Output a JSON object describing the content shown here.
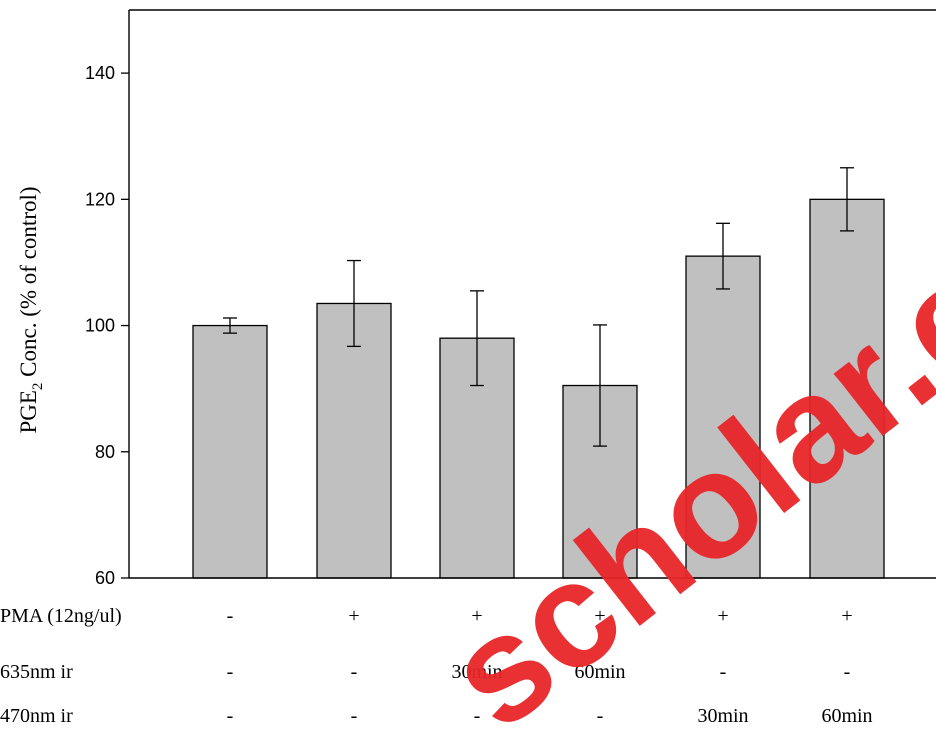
{
  "chart_data": {
    "type": "bar",
    "ylabel_main": "PGE",
    "ylabel_sub": "2",
    "ylabel_rest": " Conc. (% of control)",
    "ylim": [
      60,
      150
    ],
    "yticks": [
      60,
      80,
      100,
      120,
      140
    ],
    "grid": false,
    "bar_color": "#c0c0c0",
    "values": [
      100,
      103.5,
      98,
      90.5,
      111,
      120
    ],
    "errors": [
      1.2,
      6.8,
      7.5,
      9.6,
      5.2,
      5.0
    ],
    "rows": [
      {
        "label": "PMA (12ng/ul)",
        "cells": [
          "-",
          "+",
          "+",
          "+",
          "+",
          "+"
        ]
      },
      {
        "label": "635nm ir",
        "cells": [
          "-",
          "-",
          "30min",
          "60min",
          "-",
          "-"
        ]
      },
      {
        "label": "470nm ir",
        "cells": [
          "-",
          "-",
          "-",
          "-",
          "30min",
          "60min"
        ]
      }
    ]
  },
  "watermark": {
    "text": "scholar.e",
    "color": "#e8262a"
  }
}
